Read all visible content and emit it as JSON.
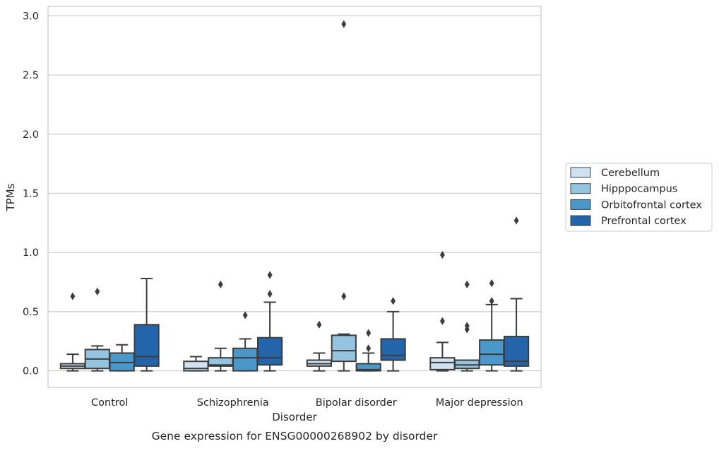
{
  "chart_data": {
    "type": "box",
    "title": "Gene expression for ENSG00000268902 by disorder",
    "xlabel": "Disorder",
    "ylabel": "TPMs",
    "ylim": [
      -0.14,
      3.08
    ],
    "yticks": [
      0.0,
      0.5,
      1.0,
      1.5,
      2.0,
      2.5,
      3.0
    ],
    "ytick_labels": [
      "0.0",
      "0.5",
      "1.0",
      "1.5",
      "2.0",
      "2.5",
      "3.0"
    ],
    "grid": true,
    "legend_position": "right",
    "categories": [
      "Control",
      "Schizophrenia",
      "Bipolar disorder",
      "Major depression"
    ],
    "series": [
      {
        "name": "Cerebellum",
        "color": "#d0e1f2",
        "boxes": [
          {
            "whislo": 0.0,
            "q1": 0.02,
            "med": 0.04,
            "q3": 0.06,
            "whishi": 0.14,
            "fliers": [
              0.63
            ]
          },
          {
            "whislo": 0.0,
            "q1": 0.0,
            "med": 0.02,
            "q3": 0.08,
            "whishi": 0.12,
            "fliers": []
          },
          {
            "whislo": 0.0,
            "q1": 0.04,
            "med": 0.06,
            "q3": 0.09,
            "whishi": 0.15,
            "fliers": [
              0.39
            ]
          },
          {
            "whislo": 0.0,
            "q1": 0.01,
            "med": 0.07,
            "q3": 0.11,
            "whishi": 0.24,
            "fliers": [
              0.42,
              0.98
            ]
          }
        ]
      },
      {
        "name": "Hipppocampus",
        "color": "#94c4df",
        "boxes": [
          {
            "whislo": 0.0,
            "q1": 0.02,
            "med": 0.1,
            "q3": 0.18,
            "whishi": 0.21,
            "fliers": [
              0.67
            ]
          },
          {
            "whislo": 0.0,
            "q1": 0.04,
            "med": 0.05,
            "q3": 0.11,
            "whishi": 0.19,
            "fliers": [
              0.73
            ]
          },
          {
            "whislo": 0.0,
            "q1": 0.08,
            "med": 0.17,
            "q3": 0.3,
            "whishi": 0.31,
            "fliers": [
              0.63,
              2.93
            ]
          },
          {
            "whislo": 0.0,
            "q1": 0.02,
            "med": 0.05,
            "q3": 0.09,
            "whishi": 0.09,
            "fliers": [
              0.35,
              0.38,
              0.73
            ]
          }
        ]
      },
      {
        "name": "Orbitofrontal cortex",
        "color": "#4a98c9",
        "boxes": [
          {
            "whislo": 0.0,
            "q1": 0.0,
            "med": 0.07,
            "q3": 0.15,
            "whishi": 0.22,
            "fliers": []
          },
          {
            "whislo": 0.0,
            "q1": 0.0,
            "med": 0.11,
            "q3": 0.19,
            "whishi": 0.27,
            "fliers": [
              0.47
            ]
          },
          {
            "whislo": 0.0,
            "q1": 0.0,
            "med": 0.01,
            "q3": 0.06,
            "whishi": 0.15,
            "fliers": [
              0.19,
              0.32
            ]
          },
          {
            "whislo": 0.0,
            "q1": 0.05,
            "med": 0.14,
            "q3": 0.26,
            "whishi": 0.56,
            "fliers": [
              0.59,
              0.74
            ]
          }
        ]
      },
      {
        "name": "Prefrontal cortex",
        "color": "#2364aa",
        "boxes": [
          {
            "whislo": 0.0,
            "q1": 0.04,
            "med": 0.12,
            "q3": 0.39,
            "whishi": 0.78,
            "fliers": []
          },
          {
            "whislo": 0.0,
            "q1": 0.05,
            "med": 0.11,
            "q3": 0.28,
            "whishi": 0.58,
            "fliers": [
              0.65,
              0.81
            ]
          },
          {
            "whislo": 0.0,
            "q1": 0.09,
            "med": 0.13,
            "q3": 0.27,
            "whishi": 0.5,
            "fliers": [
              0.59
            ]
          },
          {
            "whislo": 0.0,
            "q1": 0.04,
            "med": 0.08,
            "q3": 0.29,
            "whishi": 0.61,
            "fliers": [
              1.27
            ]
          }
        ]
      }
    ]
  }
}
